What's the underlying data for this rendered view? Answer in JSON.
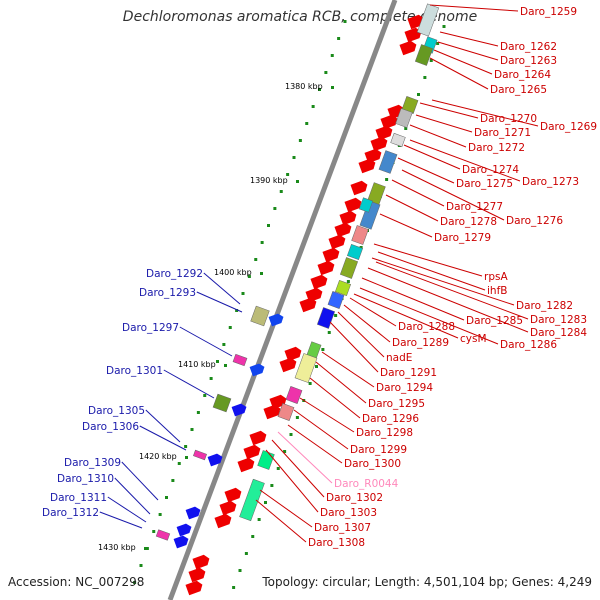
{
  "title": "Dechloromonas aromatica RCB, complete genome",
  "footer": {
    "accession": "Accession: NC_007298",
    "summary": "Topology: circular; Length: 4,501,104 bp; Genes: 4,249"
  },
  "colors": {
    "forward_label": "#cc0000",
    "reverse_label": "#1a1aaa",
    "rna_label": "#ff88bb",
    "backbone": "#888888",
    "tick": "#1a8a1a"
  },
  "scale": [
    "1380 kbp",
    "1390 kbp",
    "1400 kbp",
    "1410 kbp",
    "1420 kbp",
    "1430 kbp"
  ],
  "labels": [
    {
      "text": "Daro_1259",
      "strand": "forward"
    },
    {
      "text": "Daro_1262",
      "strand": "forward"
    },
    {
      "text": "Daro_1263",
      "strand": "forward"
    },
    {
      "text": "Daro_1264",
      "strand": "forward"
    },
    {
      "text": "Daro_1265",
      "strand": "forward"
    },
    {
      "text": "Daro_1270",
      "strand": "forward"
    },
    {
      "text": "Daro_1269",
      "strand": "forward"
    },
    {
      "text": "Daro_1271",
      "strand": "forward"
    },
    {
      "text": "Daro_1272",
      "strand": "forward"
    },
    {
      "text": "Daro_1274",
      "strand": "forward"
    },
    {
      "text": "Daro_1273",
      "strand": "forward"
    },
    {
      "text": "Daro_1275",
      "strand": "forward"
    },
    {
      "text": "Daro_1277",
      "strand": "forward"
    },
    {
      "text": "Daro_1276",
      "strand": "forward"
    },
    {
      "text": "Daro_1278",
      "strand": "forward"
    },
    {
      "text": "Daro_1279",
      "strand": "forward"
    },
    {
      "text": "rpsA",
      "strand": "forward"
    },
    {
      "text": "ihfB",
      "strand": "forward"
    },
    {
      "text": "Daro_1282",
      "strand": "forward"
    },
    {
      "text": "Daro_1283",
      "strand": "forward"
    },
    {
      "text": "Daro_1284",
      "strand": "forward"
    },
    {
      "text": "Daro_1285",
      "strand": "forward"
    },
    {
      "text": "Daro_1286",
      "strand": "forward"
    },
    {
      "text": "cysM",
      "strand": "forward"
    },
    {
      "text": "Daro_1288",
      "strand": "forward"
    },
    {
      "text": "Daro_1289",
      "strand": "forward"
    },
    {
      "text": "nadE",
      "strand": "forward"
    },
    {
      "text": "Daro_1291",
      "strand": "forward"
    },
    {
      "text": "Daro_1294",
      "strand": "forward"
    },
    {
      "text": "Daro_1295",
      "strand": "forward"
    },
    {
      "text": "Daro_1296",
      "strand": "forward"
    },
    {
      "text": "Daro_1298",
      "strand": "forward"
    },
    {
      "text": "Daro_1299",
      "strand": "forward"
    },
    {
      "text": "Daro_1300",
      "strand": "forward"
    },
    {
      "text": "Daro_R0044",
      "strand": "rna"
    },
    {
      "text": "Daro_1302",
      "strand": "forward"
    },
    {
      "text": "Daro_1303",
      "strand": "forward"
    },
    {
      "text": "Daro_1307",
      "strand": "forward"
    },
    {
      "text": "Daro_1308",
      "strand": "forward"
    },
    {
      "text": "Daro_1292",
      "strand": "reverse"
    },
    {
      "text": "Daro_1293",
      "strand": "reverse"
    },
    {
      "text": "Daro_1297",
      "strand": "reverse"
    },
    {
      "text": "Daro_1301",
      "strand": "reverse"
    },
    {
      "text": "Daro_1305",
      "strand": "reverse"
    },
    {
      "text": "Daro_1306",
      "strand": "reverse"
    },
    {
      "text": "Daro_1309",
      "strand": "reverse"
    },
    {
      "text": "Daro_1310",
      "strand": "reverse"
    },
    {
      "text": "Daro_1311",
      "strand": "reverse"
    },
    {
      "text": "Daro_1312",
      "strand": "reverse"
    }
  ]
}
